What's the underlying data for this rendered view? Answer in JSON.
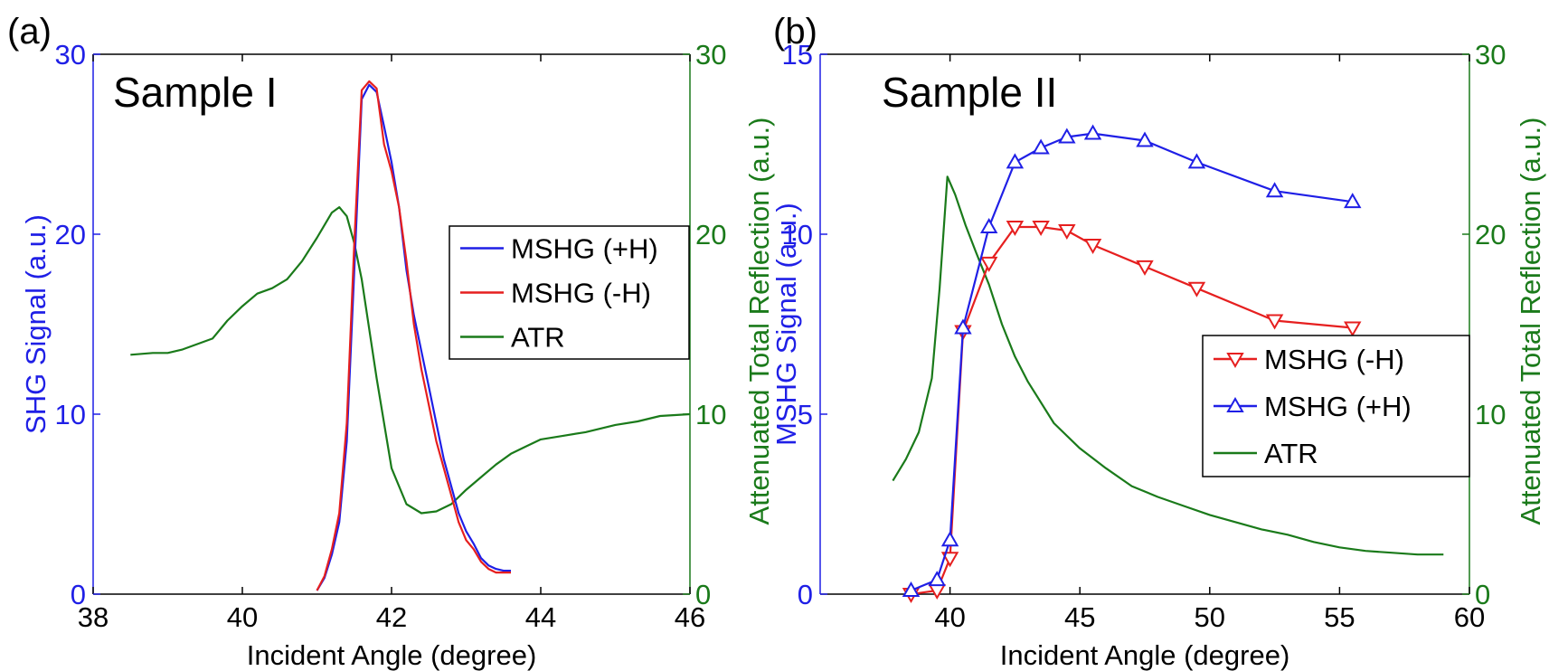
{
  "colors": {
    "blue": "#1f1fe6",
    "red": "#e61f1f",
    "green": "#1a7a1a",
    "axis": "#000000"
  },
  "chart_data": [
    {
      "type": "line",
      "panel_label": "(a)",
      "annotation": "Sample I",
      "xlabel": "Incident Angle (degree)",
      "ylabel_left": "SHG Signal (a.u.)",
      "ylabel_right": "Attenuated Total Reflection (a.u.)",
      "xlim": [
        38,
        46
      ],
      "ylim_left": [
        0,
        30
      ],
      "ylim_right": [
        0,
        30
      ],
      "xticks": [
        "38",
        "40",
        "42",
        "44",
        "46"
      ],
      "yticks_left": [
        "0",
        "10",
        "20",
        "30"
      ],
      "yticks_right": [
        "0",
        "10",
        "20",
        "30"
      ],
      "legend_position": "center-right",
      "series": [
        {
          "name": "MSHG (+H)",
          "color": "#1f1fe6",
          "axis": "left",
          "marker": "none",
          "x": [
            41.0,
            41.1,
            41.2,
            41.3,
            41.4,
            41.5,
            41.6,
            41.7,
            41.8,
            41.9,
            42.0,
            42.1,
            42.2,
            42.3,
            42.4,
            42.5,
            42.6,
            42.7,
            42.8,
            42.9,
            43.0,
            43.1,
            43.2,
            43.3,
            43.4,
            43.5,
            43.6
          ],
          "y": [
            0.2,
            0.9,
            2.2,
            4.0,
            8.5,
            18.0,
            27.5,
            28.3,
            27.9,
            26.0,
            24.0,
            21.5,
            18.0,
            15.5,
            13.5,
            11.5,
            9.5,
            7.5,
            6.0,
            4.5,
            3.5,
            2.8,
            2.0,
            1.6,
            1.4,
            1.3,
            1.3
          ]
        },
        {
          "name": "MSHG (-H)",
          "color": "#e61f1f",
          "axis": "left",
          "marker": "none",
          "x": [
            41.0,
            41.1,
            41.2,
            41.3,
            41.4,
            41.5,
            41.6,
            41.7,
            41.8,
            41.9,
            42.0,
            42.1,
            42.2,
            42.3,
            42.4,
            42.5,
            42.6,
            42.7,
            42.8,
            42.9,
            43.0,
            43.1,
            43.2,
            43.3,
            43.4,
            43.5,
            43.6
          ],
          "y": [
            0.2,
            1.0,
            2.5,
            4.5,
            9.5,
            19.5,
            28.0,
            28.5,
            28.1,
            25.0,
            23.5,
            21.5,
            18.5,
            15.0,
            12.5,
            10.5,
            8.5,
            7.0,
            5.5,
            4.0,
            3.0,
            2.5,
            1.8,
            1.4,
            1.2,
            1.2,
            1.2
          ]
        },
        {
          "name": "ATR",
          "color": "#1a7a1a",
          "axis": "right",
          "marker": "none",
          "x": [
            38.5,
            38.8,
            39.0,
            39.2,
            39.4,
            39.6,
            39.8,
            40.0,
            40.2,
            40.4,
            40.6,
            40.8,
            41.0,
            41.2,
            41.3,
            41.4,
            41.5,
            41.6,
            41.8,
            42.0,
            42.2,
            42.4,
            42.6,
            42.8,
            43.0,
            43.2,
            43.4,
            43.6,
            43.8,
            44.0,
            44.3,
            44.6,
            45.0,
            45.3,
            45.6,
            46.0
          ],
          "y": [
            13.3,
            13.4,
            13.4,
            13.6,
            13.9,
            14.2,
            15.2,
            16.0,
            16.7,
            17.0,
            17.5,
            18.5,
            19.8,
            21.2,
            21.5,
            21.0,
            19.5,
            17.5,
            12.0,
            7.0,
            5.0,
            4.5,
            4.6,
            5.0,
            5.8,
            6.5,
            7.2,
            7.8,
            8.2,
            8.6,
            8.8,
            9.0,
            9.4,
            9.6,
            9.9,
            10.0
          ]
        }
      ]
    },
    {
      "type": "line",
      "panel_label": "(b)",
      "annotation": "Sample II",
      "xlabel": "Incident Angle (degree)",
      "ylabel_left": "MSHG Signal (a.u.)",
      "ylabel_right": "Attenuated Total Reflection (a.u.)",
      "xlim": [
        35,
        60
      ],
      "ylim_left": [
        0,
        15
      ],
      "ylim_right": [
        0,
        30
      ],
      "xticks": [
        "40",
        "45",
        "50",
        "55",
        "60"
      ],
      "yticks_left": [
        "0",
        "5",
        "10",
        "15"
      ],
      "yticks_right": [
        "0",
        "10",
        "20",
        "30"
      ],
      "legend_position": "lower-right",
      "series": [
        {
          "name": "MSHG (-H)",
          "color": "#e61f1f",
          "axis": "left",
          "marker": "triangle-down",
          "x": [
            38.5,
            39.5,
            40.0,
            40.5,
            41.5,
            42.5,
            43.5,
            44.5,
            45.5,
            47.5,
            49.5,
            52.5,
            55.5
          ],
          "y": [
            0.0,
            0.1,
            1.0,
            7.3,
            9.2,
            10.2,
            10.2,
            10.1,
            9.7,
            9.1,
            8.5,
            7.6,
            7.4
          ]
        },
        {
          "name": "MSHG (+H)",
          "color": "#1f1fe6",
          "axis": "left",
          "marker": "triangle-up",
          "x": [
            38.5,
            39.5,
            40.0,
            40.5,
            41.5,
            42.5,
            43.5,
            44.5,
            45.5,
            47.5,
            49.5,
            52.5,
            55.5
          ],
          "y": [
            0.1,
            0.4,
            1.5,
            7.4,
            10.2,
            12.0,
            12.4,
            12.7,
            12.8,
            12.6,
            12.0,
            11.2,
            10.9
          ]
        },
        {
          "name": "ATR",
          "color": "#1a7a1a",
          "axis": "right",
          "marker": "none",
          "x": [
            37.8,
            38.3,
            38.8,
            39.3,
            39.6,
            39.9,
            40.2,
            40.6,
            41.0,
            41.5,
            42.0,
            42.5,
            43.0,
            44.0,
            45.0,
            46.0,
            47.0,
            48.0,
            49.0,
            50.0,
            51.0,
            52.0,
            53.0,
            54.0,
            55.0,
            56.0,
            57.0,
            58.0,
            59.0
          ],
          "y": [
            6.3,
            7.5,
            9.0,
            12.0,
            17.0,
            23.2,
            22.2,
            20.5,
            19.0,
            17.2,
            15.0,
            13.2,
            11.8,
            9.5,
            8.1,
            7.0,
            6.0,
            5.4,
            4.9,
            4.4,
            4.0,
            3.6,
            3.3,
            2.9,
            2.6,
            2.4,
            2.3,
            2.2,
            2.2
          ]
        }
      ]
    }
  ]
}
